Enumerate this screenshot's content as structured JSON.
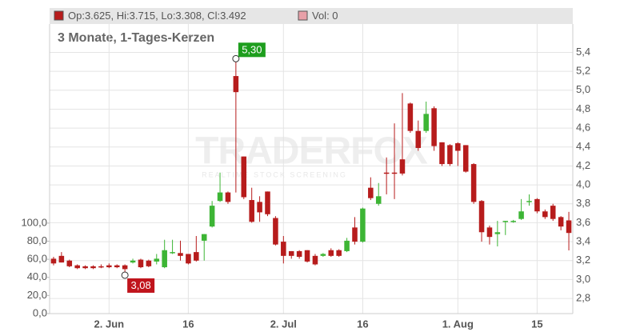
{
  "chart_data": {
    "type": "candlestick",
    "header": "Op:3.625, Hi:3.715, Lo:3.308, Cl:3.492",
    "volume_label": "Vol: 0",
    "title": "3 Monate, 1-Tages-Kerzen",
    "watermark": [
      "TRADERFOX",
      "REALTIME STOCK SCREENING"
    ],
    "categories": [
      null,
      null,
      null,
      null,
      null,
      null,
      null,
      "2. Jun",
      null,
      null,
      null,
      null,
      null,
      null,
      null,
      null,
      null,
      "16",
      null,
      null,
      null,
      null,
      null,
      null,
      null,
      null,
      null,
      null,
      null,
      "2. Jul",
      null,
      null,
      null,
      null,
      null,
      null,
      null,
      null,
      null,
      "16",
      null,
      null,
      null,
      null,
      null,
      null,
      null,
      null,
      null,
      null,
      null,
      "1. Aug",
      null,
      null,
      null,
      null,
      null,
      null,
      null,
      null,
      null,
      "15",
      null,
      null,
      null,
      null
    ],
    "open": [
      3.22,
      3.25,
      3.2,
      3.15,
      3.14,
      3.14,
      3.14,
      3.15,
      3.15,
      3.15,
      3.18,
      3.21,
      3.2,
      3.19,
      3.13,
      3.28,
      3.28,
      3.27,
      3.29,
      3.41,
      3.56,
      3.83,
      3.92,
      5.15,
      4.3,
      3.84,
      3.82,
      3.93,
      3.65,
      3.4,
      3.3,
      3.3,
      3.31,
      3.25,
      3.25,
      3.31,
      3.31,
      3.3,
      3.55,
      3.4,
      3.97,
      3.8,
      4.13,
      4.13,
      4.27,
      4.86,
      4.57,
      4.57,
      4.81,
      4.45,
      4.42,
      4.44,
      4.42,
      4.22,
      3.83,
      3.55,
      3.48,
      3.61,
      3.61,
      3.64,
      3.82,
      3.85,
      3.72,
      3.78,
      3.66,
      3.625
    ],
    "high": [
      3.24,
      3.29,
      3.21,
      3.16,
      3.15,
      3.15,
      3.16,
      3.17,
      3.16,
      3.16,
      3.22,
      3.22,
      3.21,
      3.27,
      3.42,
      3.42,
      3.41,
      3.27,
      3.46,
      3.48,
      3.83,
      4.13,
      3.93,
      5.3,
      4.3,
      3.97,
      3.88,
      3.93,
      3.67,
      3.46,
      3.3,
      3.31,
      3.31,
      3.27,
      3.28,
      3.33,
      3.32,
      3.44,
      3.66,
      3.76,
      4.08,
      4.02,
      4.29,
      4.65,
      4.97,
      4.87,
      4.68,
      4.88,
      4.83,
      4.45,
      4.43,
      4.45,
      4.42,
      4.23,
      3.84,
      3.57,
      3.62,
      3.62,
      3.63,
      3.85,
      3.9,
      3.86,
      3.74,
      3.8,
      3.67,
      3.715
    ],
    "low": [
      3.15,
      3.18,
      3.13,
      3.11,
      3.11,
      3.11,
      3.12,
      3.12,
      3.12,
      3.08,
      3.17,
      3.12,
      3.13,
      3.16,
      3.12,
      3.27,
      3.2,
      3.16,
      3.19,
      3.2,
      3.55,
      3.82,
      3.8,
      3.92,
      3.85,
      3.6,
      3.61,
      3.67,
      3.36,
      3.17,
      3.22,
      3.22,
      3.18,
      3.15,
      3.24,
      3.24,
      3.24,
      3.29,
      3.37,
      3.39,
      3.84,
      3.78,
      3.9,
      3.85,
      4.1,
      4.55,
      4.36,
      4.55,
      4.36,
      4.2,
      4.2,
      4.2,
      4.13,
      3.8,
      3.4,
      3.37,
      3.35,
      3.47,
      3.6,
      3.63,
      3.78,
      3.7,
      3.64,
      3.62,
      3.52,
      3.308
    ],
    "close": [
      3.17,
      3.18,
      3.14,
      3.12,
      3.12,
      3.12,
      3.13,
      3.13,
      3.13,
      3.11,
      3.2,
      3.13,
      3.14,
      3.22,
      3.31,
      3.29,
      3.25,
      3.17,
      3.2,
      3.48,
      3.78,
      3.92,
      3.82,
      4.98,
      3.87,
      3.61,
      3.71,
      3.69,
      3.37,
      3.25,
      3.25,
      3.24,
      3.19,
      3.16,
      3.27,
      3.25,
      3.25,
      3.41,
      3.4,
      3.75,
      3.86,
      3.88,
      4.12,
      4.12,
      4.12,
      4.57,
      4.39,
      4.75,
      4.41,
      4.22,
      4.22,
      4.36,
      4.14,
      3.82,
      3.5,
      3.45,
      3.5,
      3.62,
      3.62,
      3.72,
      3.83,
      3.72,
      3.66,
      3.64,
      3.56,
      3.492
    ],
    "up_color": "#3db535",
    "down_color": "#b71c1c",
    "volume_color": "#e8a0a8",
    "annotations": [
      {
        "label": "5,30",
        "value": 5.3,
        "field": "high",
        "color": "#1e9e1e"
      },
      {
        "label": "3,08",
        "value": 3.08,
        "field": "low",
        "color": "#c0141c"
      }
    ],
    "ylim": [
      2.64,
      5.7
    ],
    "yticks": [
      {
        "value": 2.8,
        "label": "2,8"
      },
      {
        "value": 3.0,
        "label": "3,0"
      },
      {
        "value": 3.2,
        "label": "3,2"
      },
      {
        "value": 3.4,
        "label": "3,4"
      },
      {
        "value": 3.6,
        "label": "3,6"
      },
      {
        "value": 3.8,
        "label": "3,8"
      },
      {
        "value": 4.0,
        "label": "4,0"
      },
      {
        "value": 4.2,
        "label": "4,2"
      },
      {
        "value": 4.4,
        "label": "4,4"
      },
      {
        "value": 4.6,
        "label": "4,6"
      },
      {
        "value": 4.8,
        "label": "4,8"
      },
      {
        "value": 5.0,
        "label": "5,0"
      },
      {
        "value": 5.2,
        "label": "5,2"
      },
      {
        "value": 5.4,
        "label": "5,4"
      }
    ],
    "y2lim": [
      0,
      320
    ],
    "y2ticks": [
      {
        "value": 0,
        "label": "0,0"
      },
      {
        "value": 20,
        "label": "20,0"
      },
      {
        "value": 40,
        "label": "40,0"
      },
      {
        "value": 60,
        "label": "60,0"
      },
      {
        "value": 80,
        "label": "80,0"
      },
      {
        "value": 100,
        "label": "100,0"
      }
    ],
    "grid": true
  }
}
